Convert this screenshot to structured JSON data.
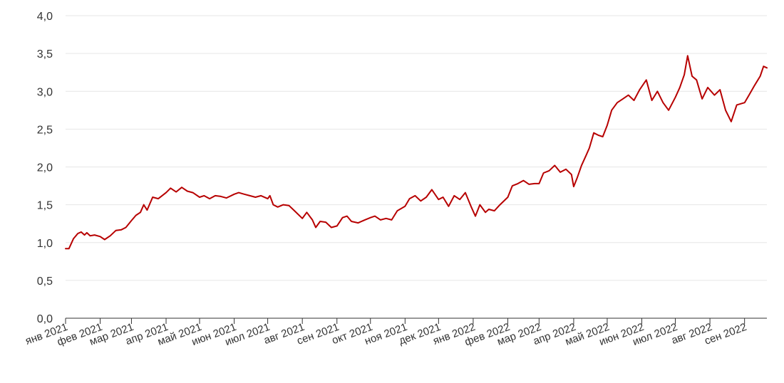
{
  "chart_data": {
    "type": "line",
    "title": "",
    "xlabel": "",
    "ylabel": "",
    "ylim": [
      0,
      4
    ],
    "grid": true,
    "legend": "none",
    "y_ticks": [
      "0,0",
      "0,5",
      "1,0",
      "1,5",
      "2,0",
      "2,5",
      "3,0",
      "3,5",
      "4,0"
    ],
    "x_ticks": [
      "янв 2021",
      "фев 2021",
      "мар 2021",
      "апр 2021",
      "май 2021",
      "июн 2021",
      "июл 2021",
      "авг 2021",
      "сен 2021",
      "окт 2021",
      "ноя 2021",
      "дек 2021",
      "янв 2022",
      "фев 2022",
      "мар 2022",
      "апр 2022",
      "май 2022",
      "июн 2022",
      "июл 2022",
      "авг 2022",
      "сен 2022"
    ],
    "x_range": [
      "2021-01-01",
      "2022-09-21"
    ],
    "series": [
      {
        "color": "#b70000",
        "points": [
          [
            "2021-01-01",
            0.92
          ],
          [
            "2021-01-04",
            0.92
          ],
          [
            "2021-01-08",
            1.05
          ],
          [
            "2021-01-12",
            1.12
          ],
          [
            "2021-01-15",
            1.14
          ],
          [
            "2021-01-18",
            1.1
          ],
          [
            "2021-01-20",
            1.13
          ],
          [
            "2021-01-23",
            1.09
          ],
          [
            "2021-01-27",
            1.1
          ],
          [
            "2021-02-01",
            1.08
          ],
          [
            "2021-02-05",
            1.04
          ],
          [
            "2021-02-10",
            1.09
          ],
          [
            "2021-02-15",
            1.16
          ],
          [
            "2021-02-20",
            1.17
          ],
          [
            "2021-02-24",
            1.2
          ],
          [
            "2021-03-01",
            1.29
          ],
          [
            "2021-03-05",
            1.36
          ],
          [
            "2021-03-09",
            1.4
          ],
          [
            "2021-03-12",
            1.5
          ],
          [
            "2021-03-15",
            1.43
          ],
          [
            "2021-03-20",
            1.6
          ],
          [
            "2021-03-25",
            1.58
          ],
          [
            "2021-04-01",
            1.66
          ],
          [
            "2021-04-05",
            1.72
          ],
          [
            "2021-04-10",
            1.67
          ],
          [
            "2021-04-15",
            1.73
          ],
          [
            "2021-04-20",
            1.68
          ],
          [
            "2021-04-25",
            1.66
          ],
          [
            "2021-05-01",
            1.6
          ],
          [
            "2021-05-05",
            1.62
          ],
          [
            "2021-05-10",
            1.58
          ],
          [
            "2021-05-15",
            1.62
          ],
          [
            "2021-05-20",
            1.61
          ],
          [
            "2021-05-25",
            1.59
          ],
          [
            "2021-06-01",
            1.64
          ],
          [
            "2021-06-05",
            1.66
          ],
          [
            "2021-06-10",
            1.64
          ],
          [
            "2021-06-15",
            1.62
          ],
          [
            "2021-06-20",
            1.6
          ],
          [
            "2021-06-25",
            1.62
          ],
          [
            "2021-07-01",
            1.58
          ],
          [
            "2021-07-03",
            1.62
          ],
          [
            "2021-07-06",
            1.5
          ],
          [
            "2021-07-10",
            1.47
          ],
          [
            "2021-07-15",
            1.5
          ],
          [
            "2021-07-20",
            1.49
          ],
          [
            "2021-07-25",
            1.42
          ],
          [
            "2021-08-01",
            1.32
          ],
          [
            "2021-08-05",
            1.4
          ],
          [
            "2021-08-10",
            1.3
          ],
          [
            "2021-08-13",
            1.2
          ],
          [
            "2021-08-17",
            1.28
          ],
          [
            "2021-08-22",
            1.27
          ],
          [
            "2021-08-27",
            1.2
          ],
          [
            "2021-09-01",
            1.22
          ],
          [
            "2021-09-06",
            1.33
          ],
          [
            "2021-09-10",
            1.35
          ],
          [
            "2021-09-14",
            1.28
          ],
          [
            "2021-09-20",
            1.26
          ],
          [
            "2021-09-26",
            1.3
          ],
          [
            "2021-10-01",
            1.33
          ],
          [
            "2021-10-05",
            1.35
          ],
          [
            "2021-10-10",
            1.3
          ],
          [
            "2021-10-15",
            1.32
          ],
          [
            "2021-10-20",
            1.3
          ],
          [
            "2021-10-25",
            1.42
          ],
          [
            "2021-11-01",
            1.48
          ],
          [
            "2021-11-05",
            1.58
          ],
          [
            "2021-11-10",
            1.62
          ],
          [
            "2021-11-15",
            1.55
          ],
          [
            "2021-11-20",
            1.6
          ],
          [
            "2021-11-25",
            1.7
          ],
          [
            "2021-12-01",
            1.57
          ],
          [
            "2021-12-05",
            1.6
          ],
          [
            "2021-12-10",
            1.48
          ],
          [
            "2021-12-15",
            1.62
          ],
          [
            "2021-12-20",
            1.57
          ],
          [
            "2021-12-25",
            1.66
          ],
          [
            "2021-12-30",
            1.48
          ],
          [
            "2022-01-03",
            1.35
          ],
          [
            "2022-01-07",
            1.5
          ],
          [
            "2022-01-12",
            1.4
          ],
          [
            "2022-01-15",
            1.44
          ],
          [
            "2022-01-20",
            1.42
          ],
          [
            "2022-01-25",
            1.5
          ],
          [
            "2022-02-01",
            1.6
          ],
          [
            "2022-02-05",
            1.75
          ],
          [
            "2022-02-10",
            1.78
          ],
          [
            "2022-02-15",
            1.82
          ],
          [
            "2022-02-20",
            1.77
          ],
          [
            "2022-02-25",
            1.78
          ],
          [
            "2022-03-01",
            1.78
          ],
          [
            "2022-03-05",
            1.92
          ],
          [
            "2022-03-10",
            1.95
          ],
          [
            "2022-03-15",
            2.02
          ],
          [
            "2022-03-20",
            1.93
          ],
          [
            "2022-03-25",
            1.97
          ],
          [
            "2022-03-30",
            1.9
          ],
          [
            "2022-04-01",
            1.74
          ],
          [
            "2022-04-04",
            1.85
          ],
          [
            "2022-04-08",
            2.02
          ],
          [
            "2022-04-12",
            2.15
          ],
          [
            "2022-04-15",
            2.25
          ],
          [
            "2022-04-19",
            2.45
          ],
          [
            "2022-04-23",
            2.42
          ],
          [
            "2022-04-27",
            2.4
          ],
          [
            "2022-05-01",
            2.55
          ],
          [
            "2022-05-05",
            2.75
          ],
          [
            "2022-05-10",
            2.85
          ],
          [
            "2022-05-15",
            2.9
          ],
          [
            "2022-05-20",
            2.95
          ],
          [
            "2022-05-25",
            2.88
          ],
          [
            "2022-05-30",
            3.02
          ],
          [
            "2022-06-05",
            3.15
          ],
          [
            "2022-06-10",
            2.88
          ],
          [
            "2022-06-15",
            3.0
          ],
          [
            "2022-06-20",
            2.85
          ],
          [
            "2022-06-25",
            2.75
          ],
          [
            "2022-07-01",
            2.92
          ],
          [
            "2022-07-05",
            3.05
          ],
          [
            "2022-07-09",
            3.22
          ],
          [
            "2022-07-12",
            3.47
          ],
          [
            "2022-07-16",
            3.2
          ],
          [
            "2022-07-20",
            3.15
          ],
          [
            "2022-07-25",
            2.9
          ],
          [
            "2022-07-30",
            3.05
          ],
          [
            "2022-08-05",
            2.95
          ],
          [
            "2022-08-10",
            3.02
          ],
          [
            "2022-08-15",
            2.75
          ],
          [
            "2022-08-20",
            2.6
          ],
          [
            "2022-08-25",
            2.82
          ],
          [
            "2022-09-01",
            2.85
          ],
          [
            "2022-09-05",
            2.95
          ],
          [
            "2022-09-10",
            3.08
          ],
          [
            "2022-09-15",
            3.2
          ],
          [
            "2022-09-18",
            3.33
          ],
          [
            "2022-09-21",
            3.31
          ]
        ]
      }
    ]
  }
}
